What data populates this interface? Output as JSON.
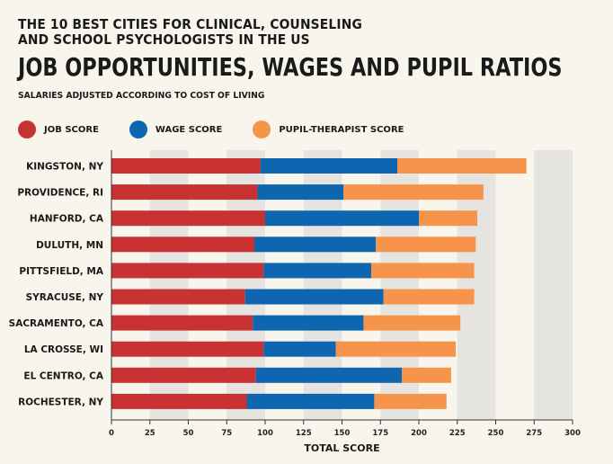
{
  "title_line1": "THE 10 BEST CITIES FOR CLINICAL, COUNSELING",
  "title_line2": "AND SCHOOL PSYCHOLOGISTS IN THE US",
  "headline": "JOB OPPORTUNITIES, WAGES AND PUPIL RATIOS",
  "subtitle": "SALARIES ADJUSTED ACCORDING TO COST OF LIVING",
  "chart_data": {
    "type": "bar",
    "orientation": "horizontal",
    "stacked": true,
    "categories": [
      "KINGSTON, NY",
      "PROVIDENCE, RI",
      "HANFORD, CA",
      "DULUTH, MN",
      "PITTSFIELD, MA",
      "SYRACUSE, NY",
      "SACRAMENTO, CA",
      "LA CROSSE, WI",
      "EL CENTRO, CA",
      "ROCHESTER, NY"
    ],
    "series": [
      {
        "name": "JOB SCORE",
        "color": "#c83232",
        "values": [
          97,
          95,
          100,
          93,
          99,
          87,
          92,
          99,
          94,
          88
        ]
      },
      {
        "name": "WAGE SCORE",
        "color": "#0f66b0",
        "values": [
          89,
          56,
          100,
          79,
          70,
          90,
          72,
          47,
          95,
          83
        ]
      },
      {
        "name": "PUPIL-THERAPIST SCORE",
        "color": "#f5944a",
        "values": [
          84,
          91,
          38,
          65,
          67,
          59,
          63,
          78,
          32,
          47
        ]
      }
    ],
    "xlabel": "TOTAL SCORE",
    "xlim": [
      0,
      300
    ],
    "xticks": [
      0,
      25,
      50,
      75,
      100,
      125,
      150,
      175,
      200,
      225,
      250,
      275,
      300
    ],
    "legend": "top-left",
    "grid": "alternating vertical bands"
  }
}
